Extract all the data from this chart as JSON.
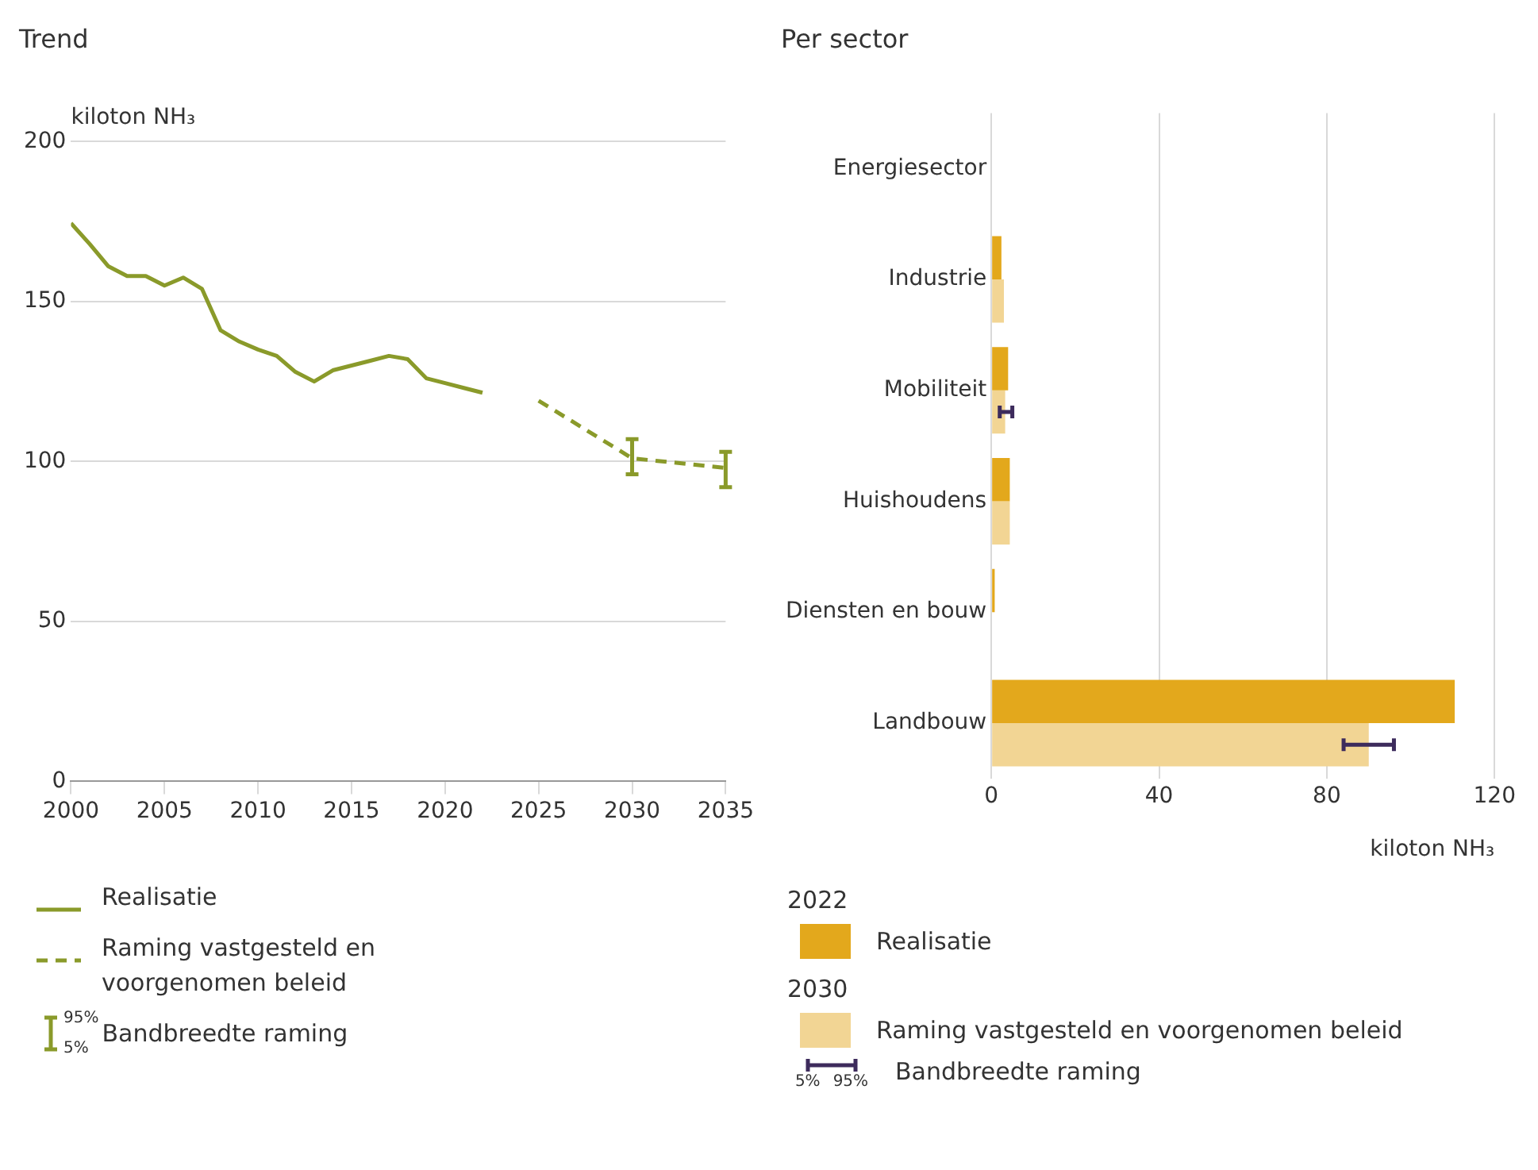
{
  "chart_data": [
    {
      "type": "line",
      "title": "Trend",
      "ylabel": "kiloton NH₃",
      "x": [
        2000,
        2001,
        2002,
        2003,
        2004,
        2005,
        2006,
        2007,
        2008,
        2009,
        2010,
        2011,
        2012,
        2013,
        2014,
        2015,
        2016,
        2017,
        2018,
        2019,
        2020,
        2021,
        2022
      ],
      "series": [
        {
          "name": "Realisatie",
          "color": "#8a9a2a",
          "line_style": "solid",
          "values": [
            174.5,
            168,
            161,
            158,
            158,
            155,
            157.5,
            154,
            141,
            137.5,
            135,
            133,
            128,
            125,
            128.5,
            130,
            131.5,
            133,
            132,
            126,
            124.5,
            123,
            121.5
          ]
        },
        {
          "name": "Raming vastgesteld en voorgenomen beleid",
          "color": "#8a9a2a",
          "line_style": "dashed",
          "x": [
            2025,
            2030,
            2035
          ],
          "values": [
            119,
            101,
            98
          ],
          "errors": [
            null,
            [
              96,
              107
            ],
            [
              92,
              103
            ]
          ]
        }
      ],
      "xlim": [
        2000,
        2035
      ],
      "xticks": [
        2000,
        2005,
        2010,
        2015,
        2020,
        2025,
        2030,
        2035
      ],
      "ylim": [
        0,
        200
      ],
      "yticks": [
        0,
        50,
        100,
        150,
        200
      ],
      "grid": "y",
      "legend": "bottom",
      "marker": "none",
      "annotations": [
        "Bandbreedte raming",
        "95%",
        "5%"
      ]
    },
    {
      "type": "bar",
      "orientation": "horizontal",
      "title": "Per sector",
      "xlabel": "kiloton NH₃",
      "categories": [
        "Energiesector",
        "Industrie",
        "Mobiliteit",
        "Huishoudens",
        "Diensten en bouw",
        "Landbouw"
      ],
      "series": [
        {
          "name": "Realisatie",
          "color": "#e3a81c",
          "values": [
            0,
            2.4,
            4,
            4.4,
            0.8,
            110.5
          ]
        },
        {
          "name": "Raming vastgesteld en voorgenomen beleid",
          "color": "#f2d594",
          "values": [
            null,
            3,
            3.3,
            4.4,
            null,
            90
          ],
          "errors": [
            null,
            null,
            [
              2,
              5
            ],
            null,
            null,
            [
              84,
              96
            ]
          ]
        }
      ],
      "xlim": [
        0,
        120
      ],
      "xticks": [
        0,
        40,
        80,
        120
      ],
      "grid": "x",
      "legend": "bottom",
      "annotations": [
        "2022",
        "2030",
        "Bandbreedte raming",
        "5%",
        "95%"
      ]
    }
  ]
}
